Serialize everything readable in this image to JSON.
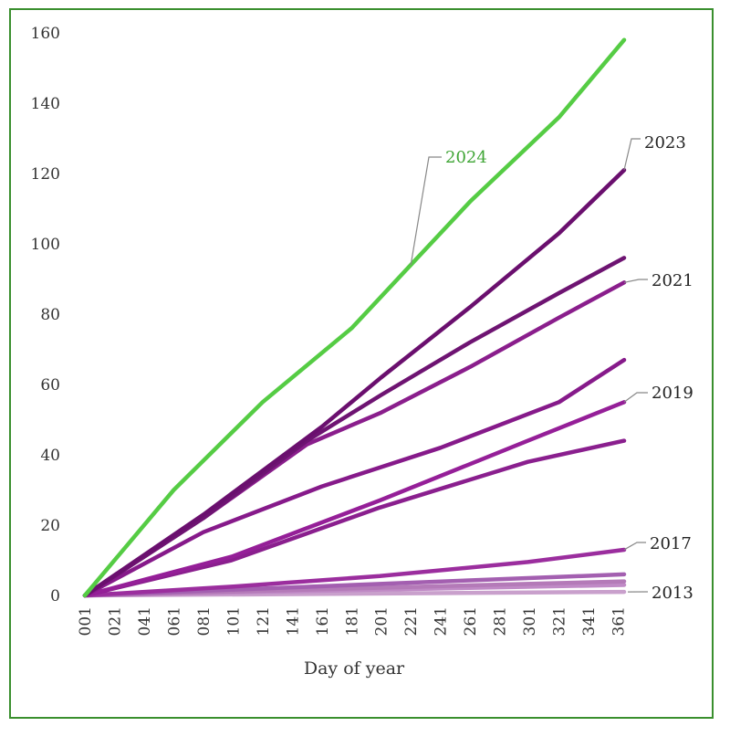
{
  "chart_data": {
    "type": "line",
    "xlabel": "Day of year",
    "ylabel": "",
    "ylim": [
      0,
      160
    ],
    "xlim": [
      1,
      365
    ],
    "yticks": [
      "0",
      "20",
      "40",
      "60",
      "80",
      "100",
      "120",
      "140",
      "160"
    ],
    "xticks": [
      "001",
      "021",
      "041",
      "061",
      "081",
      "101",
      "121",
      "141",
      "161",
      "181",
      "201",
      "221",
      "241",
      "261",
      "281",
      "301",
      "321",
      "341",
      "361"
    ],
    "grid": false,
    "legend": "none",
    "series": [
      {
        "name": "2013",
        "color": "#c9a0cc",
        "x": [
          1,
          365
        ],
        "y": [
          0,
          1
        ]
      },
      {
        "name": "",
        "color": "#c08ac6",
        "x": [
          1,
          365
        ],
        "y": [
          0,
          3
        ]
      },
      {
        "name": "",
        "color": "#b47ab8",
        "x": [
          1,
          365
        ],
        "y": [
          0,
          4
        ]
      },
      {
        "name": "",
        "color": "#a35fb0",
        "x": [
          1,
          365
        ],
        "y": [
          0,
          6
        ]
      },
      {
        "name": "2017",
        "color": "#9b2e9e",
        "x": [
          1,
          100,
          200,
          300,
          365
        ],
        "y": [
          0,
          2.5,
          5.5,
          9.5,
          13
        ]
      },
      {
        "name": "",
        "color": "#8a1f8e",
        "x": [
          1,
          100,
          200,
          300,
          365
        ],
        "y": [
          0,
          10,
          25,
          38,
          44
        ]
      },
      {
        "name": "2019",
        "color": "#951f98",
        "x": [
          1,
          100,
          200,
          300,
          365
        ],
        "y": [
          0,
          11,
          27,
          44,
          55
        ]
      },
      {
        "name": "",
        "color": "#861a8a",
        "x": [
          1,
          81,
          161,
          241,
          321,
          365
        ],
        "y": [
          0,
          18,
          31,
          42,
          55,
          67
        ]
      },
      {
        "name": "2021",
        "color": "#8a1e8c",
        "x": [
          1,
          81,
          151,
          201,
          261,
          321,
          365
        ],
        "y": [
          0,
          22,
          43,
          52,
          65,
          79,
          89
        ]
      },
      {
        "name": "",
        "color": "#6e1472",
        "x": [
          1,
          81,
          151,
          201,
          261,
          321,
          365
        ],
        "y": [
          0,
          22,
          44,
          57,
          72,
          86,
          96
        ]
      },
      {
        "name": "2023",
        "color": "#6a0f6e",
        "x": [
          1,
          81,
          161,
          201,
          261,
          321,
          365
        ],
        "y": [
          0,
          23,
          48,
          62,
          82,
          103,
          121
        ]
      },
      {
        "name": "2024",
        "color": "#55cc44",
        "x": [
          1,
          61,
          121,
          181,
          221,
          261,
          321,
          365
        ],
        "y": [
          0,
          30,
          55,
          76,
          94,
          112,
          136,
          158
        ]
      }
    ],
    "annotations": [
      {
        "text": "2024",
        "color": "#3fa535"
      },
      {
        "text": "2023",
        "color": "#222222"
      },
      {
        "text": "2021",
        "color": "#222222"
      },
      {
        "text": "2019",
        "color": "#222222"
      },
      {
        "text": "2017",
        "color": "#222222"
      },
      {
        "text": "2013",
        "color": "#222222"
      }
    ]
  }
}
